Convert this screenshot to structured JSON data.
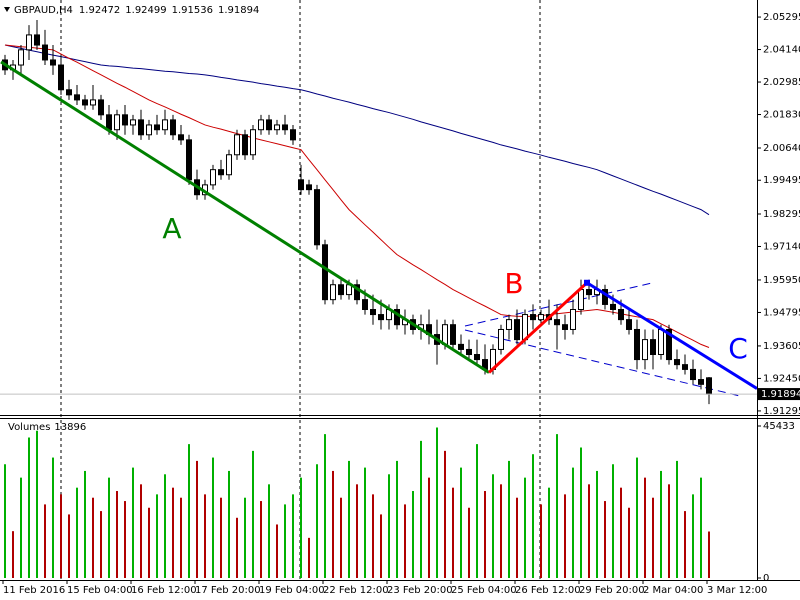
{
  "chart_data": [
    {
      "type": "candlestick",
      "title": "GBPAUD,H4",
      "categories": [
        "11 Feb 2016",
        null,
        null,
        null,
        null,
        null,
        null,
        null,
        "15 Feb 04:00",
        null,
        null,
        null,
        null,
        null,
        null,
        null,
        "16 Feb 12:00",
        null,
        null,
        null,
        null,
        null,
        null,
        null,
        "17 Feb 20:00",
        null,
        null,
        null,
        null,
        null,
        null,
        null,
        "19 Feb 04:00",
        null,
        null,
        null,
        null,
        null,
        null,
        null,
        "22 Feb 12:00",
        null,
        null,
        null,
        null,
        null,
        null,
        null,
        "23 Feb 20:00",
        null,
        null,
        null,
        null,
        null,
        null,
        null,
        "25 Feb 04:00",
        null,
        null,
        null,
        null,
        null,
        null,
        null,
        "26 Feb 12:00",
        null,
        null,
        null,
        null,
        null,
        null,
        null,
        "29 Feb 20:00",
        null,
        null,
        null,
        null,
        null,
        null,
        null,
        "2 Mar 04:00",
        null,
        null,
        null,
        null,
        null,
        null,
        null,
        "3 Mar 12:00"
      ],
      "open": [
        2.0377,
        2.0342,
        2.0359,
        2.0413,
        2.0466,
        2.043,
        2.0377,
        2.0359,
        2.0271,
        2.0253,
        2.0235,
        2.0217,
        2.0235,
        2.0182,
        2.0129,
        2.0182,
        2.0146,
        2.0164,
        2.0111,
        2.0146,
        2.0129,
        2.0164,
        2.0111,
        2.0093,
        1.9951,
        1.9898,
        1.9933,
        1.9987,
        1.9969,
        2.004,
        2.0111,
        2.004,
        2.0129,
        2.0164,
        2.0129,
        2.0146,
        2.0129,
        1.9951,
        1.9933,
        1.9916,
        1.972,
        1.9525,
        1.9578,
        1.9543,
        1.9578,
        1.9525,
        1.949,
        1.9472,
        1.9454,
        1.949,
        1.9436,
        1.9454,
        1.9419,
        1.9436,
        1.9401,
        1.9366,
        1.9436,
        1.9366,
        1.9348,
        1.933,
        1.9312,
        1.9277,
        1.9348,
        1.9419,
        1.9454,
        1.9383,
        1.9472,
        1.9454,
        1.9472,
        1.9454,
        1.9436,
        1.9419,
        1.949,
        1.9561,
        1.9543,
        1.9561,
        1.9508,
        1.949,
        1.9454,
        1.9419,
        1.9312,
        1.9383,
        1.933,
        1.9419,
        1.9312,
        1.9294,
        1.9277,
        1.9241,
        1.92472
      ],
      "high": [
        2.0395,
        2.0377,
        2.043,
        2.0501,
        2.0519,
        2.0484,
        2.043,
        2.0395,
        2.0306,
        2.0288,
        2.0253,
        2.0288,
        2.0253,
        2.0217,
        2.02,
        2.0217,
        2.0182,
        2.02,
        2.0164,
        2.0182,
        2.02,
        2.0182,
        2.0146,
        2.0111,
        1.9987,
        1.9951,
        2.0004,
        2.0022,
        2.0058,
        2.0129,
        2.0129,
        2.0146,
        2.0182,
        2.0182,
        2.0164,
        2.0182,
        2.0146,
        2.0004,
        1.9951,
        1.9933,
        1.9738,
        1.9596,
        1.9596,
        1.9596,
        1.9596,
        1.9561,
        1.9543,
        1.9525,
        1.9508,
        1.9508,
        1.949,
        1.9472,
        1.9472,
        1.949,
        1.9454,
        1.9454,
        1.9454,
        1.9401,
        1.9383,
        1.9383,
        1.9366,
        1.9366,
        1.9436,
        1.9472,
        1.949,
        1.949,
        1.9508,
        1.949,
        1.9525,
        1.9508,
        1.9472,
        1.9525,
        1.9596,
        1.9596,
        1.9596,
        1.9578,
        1.9543,
        1.9525,
        1.949,
        1.9454,
        1.9419,
        1.9419,
        1.9436,
        1.9436,
        1.9348,
        1.933,
        1.9312,
        1.9277,
        1.92499
      ],
      "low": [
        2.0324,
        2.0306,
        2.0324,
        2.0377,
        2.0413,
        2.0359,
        2.0324,
        2.0253,
        2.0235,
        2.0217,
        2.02,
        2.02,
        2.0164,
        2.0111,
        2.0093,
        2.0111,
        2.0111,
        2.0093,
        2.0093,
        2.0111,
        2.0111,
        2.0093,
        2.0075,
        1.9933,
        1.988,
        1.988,
        1.9916,
        1.9951,
        1.9951,
        2.0022,
        2.0022,
        2.0022,
        2.0111,
        2.0111,
        2.0111,
        2.0111,
        2.0075,
        1.9898,
        1.9898,
        1.9703,
        1.9508,
        1.9508,
        1.9525,
        1.9525,
        1.9508,
        1.9472,
        1.9436,
        1.9419,
        1.9419,
        1.9419,
        1.9401,
        1.9401,
        1.9383,
        1.9366,
        1.9294,
        1.9348,
        1.9348,
        1.933,
        1.9312,
        1.9294,
        1.9259,
        1.9259,
        1.933,
        1.9383,
        1.9366,
        1.9366,
        1.9419,
        1.9436,
        1.9436,
        1.9348,
        1.9383,
        1.9401,
        1.9472,
        1.9525,
        1.9508,
        1.949,
        1.9472,
        1.9436,
        1.9401,
        1.9277,
        1.9277,
        1.9277,
        1.9312,
        1.9294,
        1.9277,
        1.9259,
        1.9224,
        1.9206,
        1.91536
      ],
      "close": [
        2.0342,
        2.0359,
        2.0413,
        2.0466,
        2.043,
        2.0377,
        2.0359,
        2.0271,
        2.0253,
        2.0235,
        2.0217,
        2.0235,
        2.0182,
        2.0129,
        2.0182,
        2.0146,
        2.0164,
        2.0111,
        2.0146,
        2.0129,
        2.0164,
        2.0111,
        2.0093,
        1.9951,
        1.9898,
        1.9933,
        1.9987,
        1.9969,
        2.004,
        2.0111,
        2.004,
        2.0129,
        2.0164,
        2.0129,
        2.0146,
        2.0129,
        2.0093,
        1.9916,
        1.9916,
        1.972,
        1.9525,
        1.9578,
        1.9543,
        1.9578,
        1.9525,
        1.949,
        1.9472,
        1.9454,
        1.949,
        1.9436,
        1.9454,
        1.9419,
        1.9436,
        1.9401,
        1.9366,
        1.9436,
        1.9366,
        1.9348,
        1.933,
        1.9312,
        1.9277,
        1.9348,
        1.9419,
        1.9454,
        1.9383,
        1.9472,
        1.9454,
        1.9472,
        1.9454,
        1.9436,
        1.9419,
        1.949,
        1.9561,
        1.9543,
        1.9561,
        1.9508,
        1.949,
        1.9454,
        1.9419,
        1.9312,
        1.9383,
        1.933,
        1.9419,
        1.9312,
        1.9294,
        1.9277,
        1.9241,
        1.9224,
        1.91894
      ],
      "up_color": "#ffffff",
      "down_color": "#000000",
      "lines": [
        {
          "color": "#000080",
          "values": [
            2.043,
            2.0424,
            2.0418,
            2.0412,
            2.0406,
            2.04,
            2.0394,
            2.0389,
            2.0383,
            2.0377,
            2.0371,
            2.0365,
            2.0359,
            2.0356,
            2.0354,
            2.0351,
            2.0348,
            2.0346,
            2.0343,
            2.034,
            2.0337,
            2.0335,
            2.0332,
            2.0329,
            2.0327,
            2.0324,
            2.032,
            2.0315,
            2.0311,
            2.0306,
            2.0302,
            2.0298,
            2.0293,
            2.0289,
            2.0284,
            2.028,
            2.0275,
            2.0271,
            2.0264,
            2.0256,
            2.0249,
            2.0241,
            2.0234,
            2.0227,
            2.0219,
            2.0212,
            2.0204,
            2.0197,
            2.019,
            2.0182,
            2.0174,
            2.0166,
            2.0157,
            2.0149,
            2.0141,
            2.0133,
            2.0125,
            2.0116,
            2.0108,
            2.01,
            2.0092,
            2.0084,
            2.0075,
            2.0068,
            2.0061,
            2.0053,
            2.0046,
            2.0039,
            2.0031,
            2.0024,
            2.0017,
            2.0009,
            2.0002,
            1.9995,
            1.9987,
            1.9976,
            1.9965,
            1.9954,
            1.9943,
            1.9932,
            1.9921,
            1.991,
            1.99,
            1.9889,
            1.9878,
            1.9867,
            1.9856,
            1.9845,
            1.9827
          ]
        },
        {
          "color": "#cc0000",
          "values": [
            2.043,
            2.0427,
            2.0424,
            2.0422,
            2.0419,
            2.0416,
            2.0413,
            2.0398,
            2.0383,
            2.0369,
            2.0354,
            2.0339,
            2.0324,
            2.0309,
            2.0294,
            2.028,
            2.0265,
            2.025,
            2.0235,
            2.0222,
            2.021,
            2.0197,
            2.0184,
            2.0172,
            2.0159,
            2.0146,
            2.0138,
            2.0131,
            2.0123,
            2.0115,
            2.0108,
            2.01,
            2.0093,
            2.0086,
            2.0079,
            2.0072,
            2.0065,
            2.0058,
            2.0022,
            1.9987,
            1.9951,
            1.9916,
            1.988,
            1.9845,
            1.9818,
            1.9791,
            1.9765,
            1.9738,
            1.9711,
            1.9685,
            1.9667,
            1.9649,
            1.9632,
            1.9614,
            1.9596,
            1.9579,
            1.9561,
            1.9546,
            1.9531,
            1.9516,
            1.9502,
            1.9487,
            1.9472,
            1.9468,
            1.9466,
            1.9465,
            1.9466,
            1.9468,
            1.9472,
            1.9475,
            1.9478,
            1.9481,
            1.9484,
            1.9487,
            1.949,
            1.9485,
            1.948,
            1.9475,
            1.9469,
            1.9464,
            1.9459,
            1.9454,
            1.9439,
            1.9425,
            1.941,
            1.9395,
            1.9381,
            1.9366,
            1.9355
          ]
        }
      ],
      "drawings": [
        {
          "label": "A",
          "color": "#008000",
          "x": [
            -0.5,
            60.5
          ],
          "y": [
            2.037,
            1.9266
          ]
        },
        {
          "label": "B",
          "color": "#ff0000",
          "x": [
            60.5,
            72.75
          ],
          "y": [
            1.9266,
            1.9585
          ]
        },
        {
          "label": "C",
          "color": "#0000ff",
          "x": [
            72.75,
            94
          ],
          "y": [
            1.9585,
            1.9209
          ]
        }
      ],
      "ylim": [
        1.9115,
        2.0583
      ],
      "yticks": [
        2.05295,
        {
          "value": 2.0414,
          "label": "2.04140"
        },
        2.02985,
        {
          "value": 2.0183,
          "label": "2.01830"
        },
        {
          "value": 2.0064,
          "label": "2.00640"
        },
        1.99495,
        1.98295,
        {
          "value": 1.9714,
          "label": "1.97140"
        },
        {
          "value": 1.9595,
          "label": "1.95950"
        },
        1.94795,
        1.93605,
        {
          "value": 1.9245,
          "label": "1.92450"
        },
        1.91295
      ]
    },
    {
      "type": "bar",
      "title": "Volumes",
      "values": [
        34000,
        14000,
        30000,
        42000,
        44000,
        22000,
        36000,
        25000,
        19000,
        27000,
        32000,
        24000,
        20000,
        30000,
        26000,
        23000,
        33000,
        28000,
        21000,
        25000,
        31000,
        27000,
        24000,
        40000,
        35000,
        25000,
        36000,
        24000,
        32000,
        18000,
        24000,
        38000,
        23000,
        28000,
        16000,
        22000,
        25000,
        30000,
        12000,
        34000,
        43000,
        32000,
        24000,
        35000,
        28000,
        33000,
        25000,
        19000,
        31000,
        35000,
        22000,
        26000,
        41000,
        30000,
        45000,
        38000,
        27000,
        33000,
        21000,
        40000,
        26000,
        31000,
        28000,
        35000,
        24000,
        30000,
        37000,
        22000,
        27000,
        43000,
        25000,
        33000,
        39000,
        28000,
        32000,
        23000,
        34000,
        27000,
        21000,
        36000,
        30000,
        24000,
        32000,
        28000,
        35000,
        20000,
        25000,
        30000,
        13896
      ],
      "up_color": "#00b000",
      "down_color": "#b00000",
      "ylim": [
        0,
        45433
      ],
      "yticks": [
        0,
        45433
      ]
    }
  ]
}
